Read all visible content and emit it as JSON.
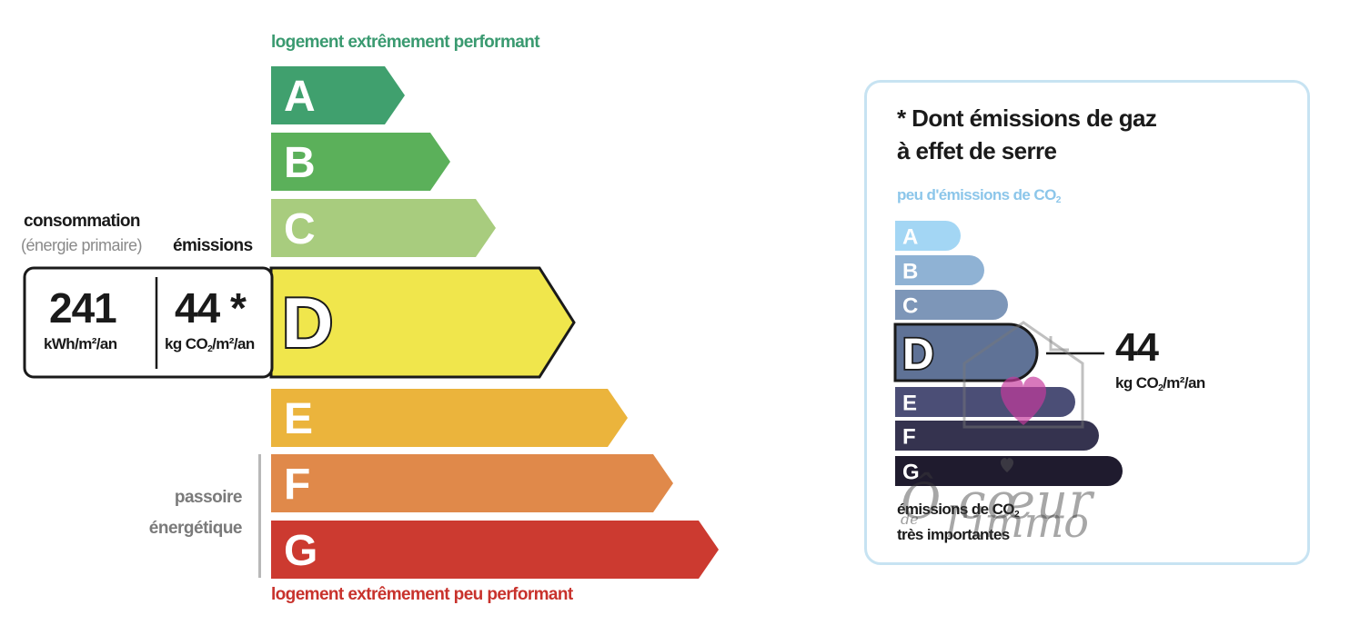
{
  "dpe": {
    "top_caption": "logement extrêmement performant",
    "bottom_caption": "logement extrêmement peu performant",
    "classes": [
      "A",
      "B",
      "C",
      "D",
      "E",
      "F",
      "G"
    ],
    "class_colors": [
      "#40a06e",
      "#5bb05a",
      "#a8cc7e",
      "#f0e64c",
      "#ebb43c",
      "#e0894a",
      "#cc3a30"
    ],
    "current_class": "D",
    "consumption_label": "consommation",
    "consumption_sublabel": "(énergie primaire)",
    "emissions_label": "émissions",
    "consumption_value": "241",
    "consumption_unit": "kWh/m²/an",
    "emissions_value": "44 *",
    "emissions_unit_prefix": "kg CO",
    "emissions_unit_sub": "2",
    "emissions_unit_suffix": "/m²/an",
    "passoire_line1": "passoire",
    "passoire_line2": "énergétique"
  },
  "ges": {
    "title_line1": "* Dont émissions de gaz",
    "title_line2": "à effet de serre",
    "top_caption_prefix": "peu d'émissions de CO",
    "top_caption_sub": "2",
    "classes": [
      "A",
      "B",
      "C",
      "D",
      "E",
      "F",
      "G"
    ],
    "class_colors": [
      "#a3d6f4",
      "#8fb2d4",
      "#7d96b8",
      "#5f7296",
      "#4b4e76",
      "#35334f",
      "#1f1b2e"
    ],
    "current_class": "D",
    "value": "44",
    "unit_prefix": "kg CO",
    "unit_sub": "2",
    "unit_suffix": "/m²/an",
    "bottom_caption_line1_prefix": "émissions de CO",
    "bottom_caption_line1_sub": "2",
    "bottom_caption_line2": "très importantes"
  },
  "watermark": {
    "brand_line1": "Ô cœur",
    "brand_small": "de",
    "brand_line2": "l'immo",
    "logo_icon": "house-heart-icon"
  }
}
